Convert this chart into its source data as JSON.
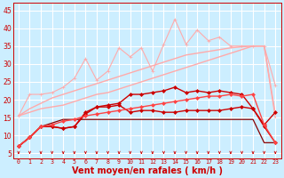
{
  "background_color": "#cceeff",
  "grid_color": "#ffffff",
  "xlabel": "Vent moyen/en rafales ( km/h )",
  "xlabel_color": "#cc0000",
  "xlabel_fontsize": 7,
  "tick_color": "#cc0000",
  "tick_fontsize": 5.5,
  "yticks": [
    5,
    10,
    15,
    20,
    25,
    30,
    35,
    40,
    45
  ],
  "xticks": [
    0,
    1,
    2,
    3,
    4,
    5,
    6,
    7,
    8,
    9,
    10,
    11,
    12,
    13,
    14,
    15,
    16,
    17,
    18,
    19,
    20,
    21,
    22,
    23
  ],
  "ylim": [
    3.5,
    47
  ],
  "xlim": [
    -0.5,
    23.5
  ],
  "series": [
    {
      "x": [
        0,
        1,
        2,
        3,
        4,
        5,
        6,
        7,
        8,
        9,
        10,
        11,
        12,
        13,
        14,
        15,
        16,
        17,
        18,
        19,
        20,
        21,
        22,
        23
      ],
      "y": [
        15.5,
        21.5,
        21.5,
        22.0,
        23.5,
        26.0,
        31.5,
        25.5,
        28.0,
        34.5,
        32.0,
        34.5,
        28.0,
        35.5,
        42.5,
        35.5,
        39.5,
        36.5,
        37.5,
        35.0,
        35.0,
        35.0,
        35.0,
        24.0
      ],
      "color": "#ffaaaa",
      "marker": "+",
      "markersize": 3.5,
      "linewidth": 0.8
    },
    {
      "x": [
        0,
        1,
        2,
        3,
        4,
        5,
        6,
        7,
        8,
        9,
        10,
        11,
        12,
        13,
        14,
        15,
        16,
        17,
        18,
        19,
        20,
        21,
        22,
        23
      ],
      "y": [
        15.5,
        17.5,
        19.0,
        20.5,
        21.5,
        22.5,
        23.5,
        24.5,
        25.5,
        26.5,
        27.5,
        28.5,
        29.5,
        30.5,
        31.5,
        32.5,
        33.0,
        33.5,
        34.0,
        34.5,
        34.8,
        35.0,
        35.0,
        15.0
      ],
      "color": "#ffaaaa",
      "marker": null,
      "linewidth": 1.0
    },
    {
      "x": [
        0,
        1,
        2,
        3,
        4,
        5,
        6,
        7,
        8,
        9,
        10,
        11,
        12,
        13,
        14,
        15,
        16,
        17,
        18,
        19,
        20,
        21,
        22,
        23
      ],
      "y": [
        15.5,
        16.5,
        17.5,
        18.0,
        18.5,
        19.5,
        20.5,
        21.5,
        22.0,
        23.0,
        24.0,
        25.0,
        26.0,
        27.0,
        28.0,
        29.0,
        30.0,
        31.0,
        32.0,
        33.0,
        34.0,
        35.0,
        35.0,
        16.0
      ],
      "color": "#ffaaaa",
      "marker": null,
      "linewidth": 1.0
    },
    {
      "x": [
        0,
        1,
        2,
        3,
        4,
        5,
        6,
        7,
        8,
        9,
        10,
        11,
        12,
        13,
        14,
        15,
        16,
        17,
        18,
        19,
        20,
        21,
        22,
        23
      ],
      "y": [
        7.0,
        9.5,
        12.5,
        12.5,
        12.0,
        12.5,
        16.0,
        18.0,
        18.5,
        19.0,
        21.5,
        21.5,
        22.0,
        22.5,
        23.5,
        22.0,
        22.5,
        22.0,
        22.5,
        22.0,
        21.5,
        17.5,
        12.5,
        8.0
      ],
      "color": "#cc0000",
      "marker": "D",
      "markersize": 2.0,
      "linewidth": 1.0
    },
    {
      "x": [
        0,
        1,
        2,
        3,
        4,
        5,
        6,
        7,
        8,
        9,
        10,
        11,
        12,
        13,
        14,
        15,
        16,
        17,
        18,
        19,
        20,
        21,
        22,
        23
      ],
      "y": [
        7.0,
        9.5,
        12.5,
        12.5,
        12.0,
        12.5,
        16.5,
        18.0,
        18.0,
        18.5,
        16.5,
        17.0,
        17.0,
        16.5,
        16.5,
        17.0,
        17.0,
        17.0,
        17.0,
        17.5,
        18.0,
        17.5,
        13.0,
        16.5
      ],
      "color": "#cc0000",
      "marker": "D",
      "markersize": 2.0,
      "linewidth": 1.0
    },
    {
      "x": [
        0,
        1,
        2,
        3,
        4,
        5,
        6,
        7,
        8,
        9,
        10,
        11,
        12,
        13,
        14,
        15,
        16,
        17,
        18,
        19,
        20,
        21,
        22,
        23
      ],
      "y": [
        7.0,
        9.5,
        12.5,
        13.0,
        14.0,
        14.5,
        15.5,
        16.0,
        16.5,
        17.0,
        17.5,
        18.0,
        18.5,
        19.0,
        19.5,
        20.0,
        20.5,
        21.0,
        21.0,
        21.5,
        21.0,
        21.5,
        13.0,
        8.0
      ],
      "color": "#ff4444",
      "marker": "D",
      "markersize": 2.0,
      "linewidth": 1.0
    },
    {
      "x": [
        0,
        1,
        2,
        3,
        4,
        5,
        6,
        7,
        8,
        9,
        10,
        11,
        12,
        13,
        14,
        15,
        16,
        17,
        18,
        19,
        20,
        21,
        22,
        23
      ],
      "y": [
        7.0,
        9.5,
        12.5,
        13.5,
        14.5,
        14.5,
        14.5,
        14.5,
        14.5,
        14.5,
        14.5,
        14.5,
        14.5,
        14.5,
        14.5,
        14.5,
        14.5,
        14.5,
        14.5,
        14.5,
        14.5,
        14.5,
        8.0,
        8.0
      ],
      "color": "#880000",
      "marker": null,
      "linewidth": 0.9
    }
  ]
}
